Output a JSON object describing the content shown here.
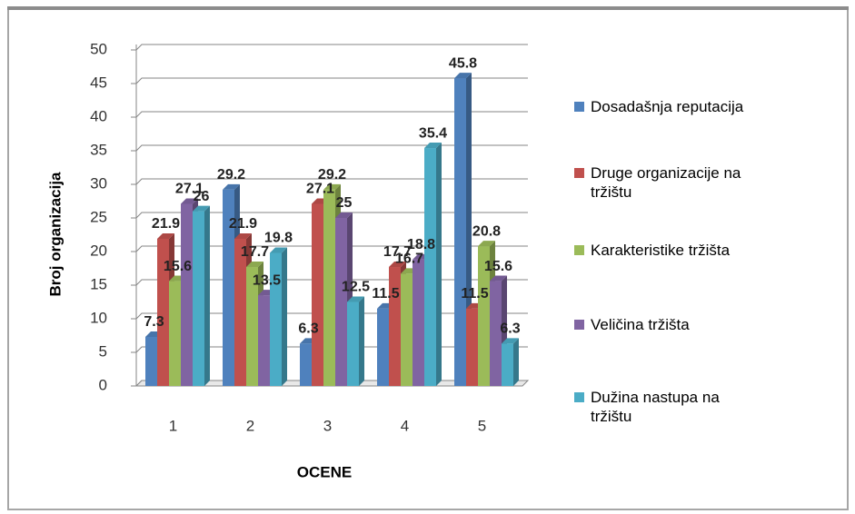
{
  "chart_data": {
    "type": "bar",
    "y_label": "Broj organizacija",
    "x_label": "OCENE",
    "categories": [
      "1",
      "2",
      "3",
      "4",
      "5"
    ],
    "series": [
      {
        "name": "Dosadašnja reputacija",
        "color": "#4f81bd",
        "values": [
          7.3,
          29.2,
          6.3,
          11.5,
          45.8
        ]
      },
      {
        "name": "Druge organizacije na tržištu",
        "color": "#c0504d",
        "values": [
          21.9,
          21.9,
          27.1,
          17.7,
          11.5
        ]
      },
      {
        "name": "Karakteristike tržišta",
        "color": "#9bbb59",
        "values": [
          15.6,
          17.7,
          29.2,
          16.7,
          20.8
        ]
      },
      {
        "name": "Veličina tržišta",
        "color": "#8064a2",
        "values": [
          27.1,
          13.5,
          25,
          18.8,
          15.6
        ]
      },
      {
        "name": "Dužina nastupa na tržištu",
        "color": "#4bacc6",
        "values": [
          26,
          19.8,
          12.5,
          35.4,
          6.3
        ]
      }
    ],
    "ylim": [
      0,
      50
    ],
    "yticks": [
      0,
      5,
      10,
      15,
      20,
      25,
      30,
      35,
      40,
      45,
      50
    ],
    "grid": true,
    "legend": "right"
  }
}
